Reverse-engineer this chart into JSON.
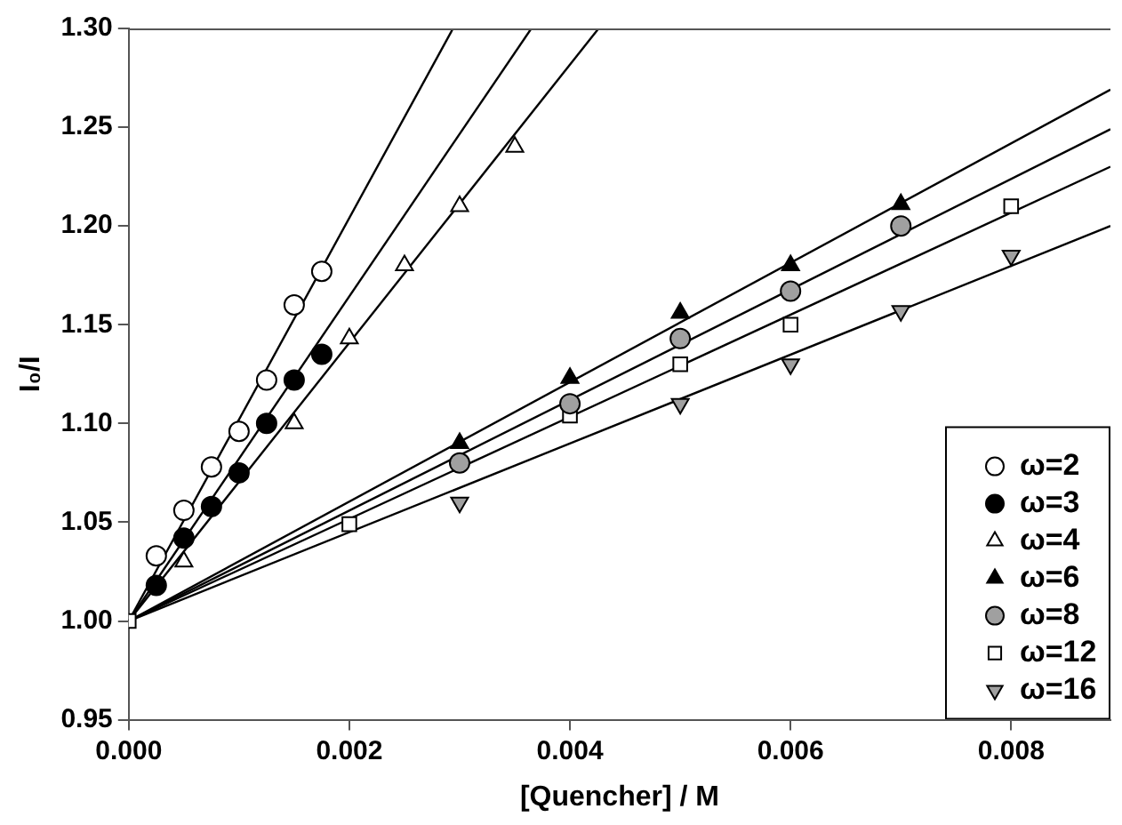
{
  "chart_data": {
    "type": "scatter",
    "xlabel": "[Quencher] / M",
    "ylabel": "I₀/I",
    "xlim": [
      0,
      0.0089
    ],
    "ylim": [
      0.95,
      1.3
    ],
    "xticks": [
      {
        "value": 0,
        "label": "0.000"
      },
      {
        "value": 0.002,
        "label": "0.002"
      },
      {
        "value": 0.004,
        "label": "0.004"
      },
      {
        "value": 0.006,
        "label": "0.006"
      },
      {
        "value": 0.008,
        "label": "0.008"
      }
    ],
    "yticks": [
      {
        "value": 0.95,
        "label": "0.95"
      },
      {
        "value": 1,
        "label": "1.00"
      },
      {
        "value": 1.05,
        "label": "1.05"
      },
      {
        "value": 1.1,
        "label": "1.10"
      },
      {
        "value": 1.15,
        "label": "1.15"
      },
      {
        "value": 1.2,
        "label": "1.20"
      },
      {
        "value": 1.25,
        "label": "1.25"
      },
      {
        "value": 1.3,
        "label": "1.30"
      }
    ],
    "grid": false,
    "legend": "bottom right",
    "series": [
      {
        "name": "ω=2",
        "color": "#ffffff",
        "marker": "circle",
        "x": [
          0.00025,
          0.0005,
          0.00075,
          0.001,
          0.00125,
          0.0015,
          0.00175
        ],
        "values": [
          1.033,
          1.056,
          1.078,
          1.096,
          1.122,
          1.16,
          1.177
        ]
      },
      {
        "name": "ω=3",
        "color": "#000000",
        "marker": "circle",
        "x": [
          0.00025,
          0.0005,
          0.00075,
          0.001,
          0.00125,
          0.0015,
          0.00175
        ],
        "values": [
          1.018,
          1.042,
          1.058,
          1.075,
          1.1,
          1.122,
          1.135
        ]
      },
      {
        "name": "ω=4",
        "color": "#ffffff",
        "marker": "triangle",
        "x": [
          0.0005,
          0.0015,
          0.002,
          0.0025,
          0.003,
          0.0035
        ],
        "values": [
          1.03,
          1.1,
          1.143,
          1.18,
          1.21,
          1.24
        ]
      },
      {
        "name": "ω=6",
        "color": "#000000",
        "marker": "triangle",
        "x": [
          0.003,
          0.004,
          0.005,
          0.006,
          0.007
        ],
        "values": [
          1.09,
          1.123,
          1.156,
          1.18,
          1.211
        ]
      },
      {
        "name": "ω=8",
        "color": "#a0a0a0",
        "marker": "circle",
        "x": [
          0.003,
          0.004,
          0.005,
          0.006,
          0.007
        ],
        "values": [
          1.08,
          1.11,
          1.143,
          1.167,
          1.2
        ]
      },
      {
        "name": "ω=12",
        "color": "#ffffff",
        "marker": "square",
        "x": [
          0,
          0.002,
          0.004,
          0.005,
          0.006,
          0.008
        ],
        "values": [
          1,
          1.049,
          1.104,
          1.13,
          1.15,
          1.21
        ]
      },
      {
        "name": "ω=16",
        "color": "#a0a0a0",
        "marker": "triangle_down",
        "x": [
          0.003,
          0.005,
          0.006,
          0.007,
          0.008
        ],
        "values": [
          1.06,
          1.11,
          1.13,
          1.157,
          1.185
        ]
      },
      {
        "type": "line",
        "color": "#000000",
        "marker": "none",
        "x": [
          0,
          0.00294
        ],
        "values": [
          1,
          1.3
        ]
      },
      {
        "type": "line",
        "color": "#000000",
        "marker": "none",
        "x": [
          0,
          0.00365
        ],
        "values": [
          1,
          1.3
        ]
      },
      {
        "type": "line",
        "color": "#000000",
        "marker": "none",
        "x": [
          0,
          0.00426
        ],
        "values": [
          1,
          1.3
        ]
      },
      {
        "type": "line",
        "color": "#000000",
        "marker": "none",
        "x": [
          0,
          0.0089
        ],
        "values": [
          1,
          1.269
        ]
      },
      {
        "type": "line",
        "color": "#000000",
        "marker": "none",
        "x": [
          0,
          0.0089
        ],
        "values": [
          1,
          1.249
        ]
      },
      {
        "type": "line",
        "color": "#000000",
        "marker": "none",
        "x": [
          0,
          0.0089
        ],
        "values": [
          1,
          1.23
        ]
      },
      {
        "type": "line",
        "color": "#000000",
        "marker": "none",
        "x": [
          0,
          0.0089
        ],
        "values": [
          1,
          1.2
        ]
      }
    ]
  }
}
